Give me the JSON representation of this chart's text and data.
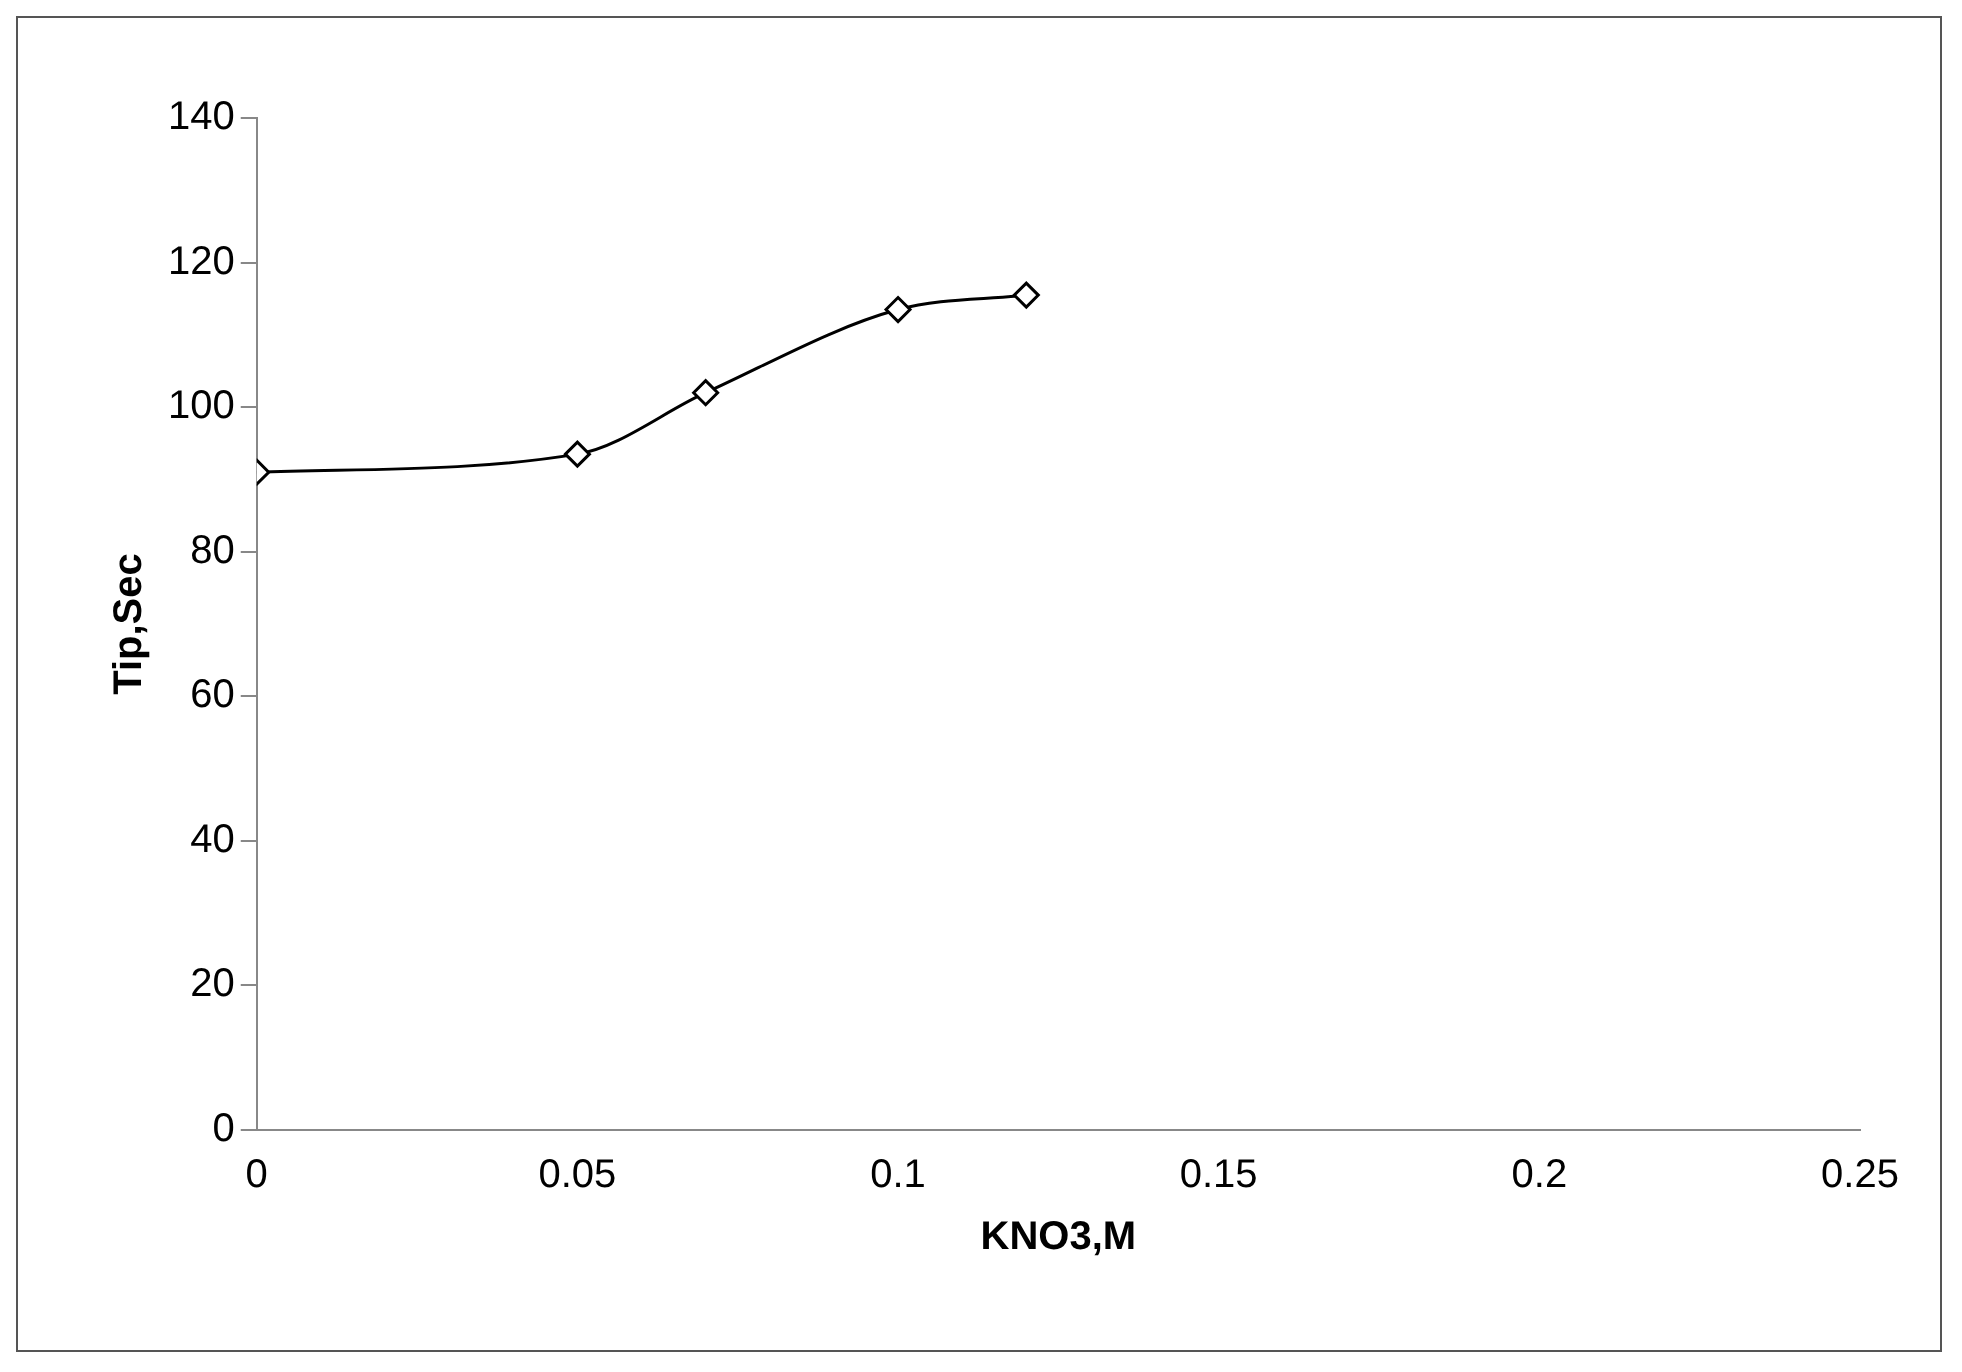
{
  "chart_data": {
    "type": "line",
    "xlabel": "KNO3,M",
    "ylabel": "Tip,Sec",
    "x": [
      0,
      0.05,
      0.07,
      0.1,
      0.12
    ],
    "series": [
      {
        "color": "#000000",
        "values": [
          91,
          93.5,
          102,
          113.5,
          115.5
        ]
      }
    ],
    "xlim": [
      0,
      0.25
    ],
    "xticks": [
      0,
      0.05,
      0.1,
      0.15,
      0.2,
      0.25
    ],
    "ylim": [
      0,
      140
    ],
    "yticks": [
      0,
      20,
      40,
      60,
      80,
      100,
      120,
      140
    ],
    "grid": false,
    "legend": false,
    "marker": "diamond",
    "line_style": "solid"
  }
}
